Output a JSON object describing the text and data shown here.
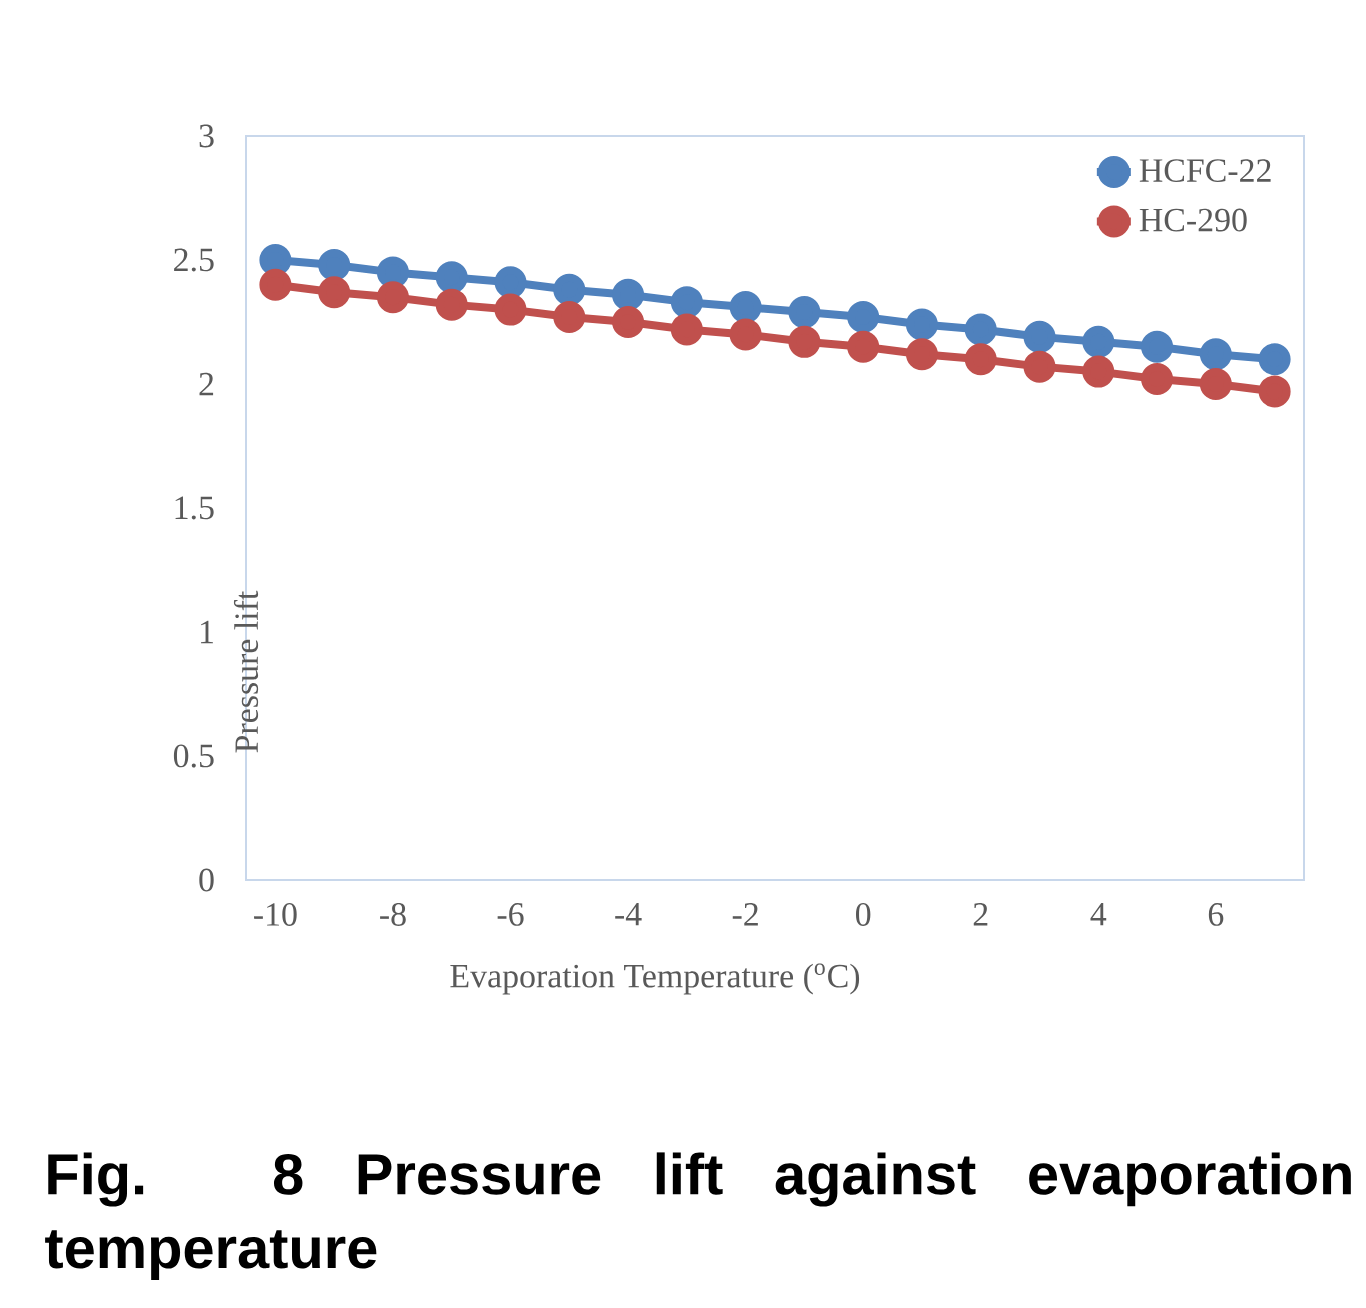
{
  "chart_data": {
    "type": "line",
    "title": "Fig. 8 Pressure lift against evaporation temperature",
    "xlabel": "Evaporation Temperature ($^{o}$C)",
    "ylabel": "Pressure lift",
    "x": [
      -10,
      -9,
      -8,
      -7,
      -6,
      -5,
      -4,
      -3,
      -2,
      -1,
      0,
      1,
      2,
      3,
      4,
      5,
      6,
      7
    ],
    "series": [
      {
        "name": "HCFC-22",
        "color": "#4f81bd",
        "values": [
          2.5,
          2.48,
          2.45,
          2.43,
          2.41,
          2.38,
          2.36,
          2.33,
          2.31,
          2.29,
          2.27,
          2.24,
          2.22,
          2.19,
          2.17,
          2.15,
          2.12,
          2.1
        ]
      },
      {
        "name": "HC-290",
        "color": "#c0504d",
        "values": [
          2.4,
          2.37,
          2.35,
          2.32,
          2.3,
          2.27,
          2.25,
          2.22,
          2.2,
          2.17,
          2.15,
          2.12,
          2.1,
          2.07,
          2.05,
          2.02,
          2.0,
          1.97
        ]
      }
    ],
    "xlim": [
      -10.5,
      7.5
    ],
    "xticks": [
      -10,
      -8,
      -6,
      -4,
      -2,
      0,
      2,
      4,
      6
    ],
    "ylim": [
      0,
      3
    ],
    "yticks": [
      0,
      0.5,
      1,
      1.5,
      2,
      2.5,
      3
    ],
    "grid": false,
    "legend": "top right",
    "marker": "circle",
    "line_style": "solid"
  }
}
